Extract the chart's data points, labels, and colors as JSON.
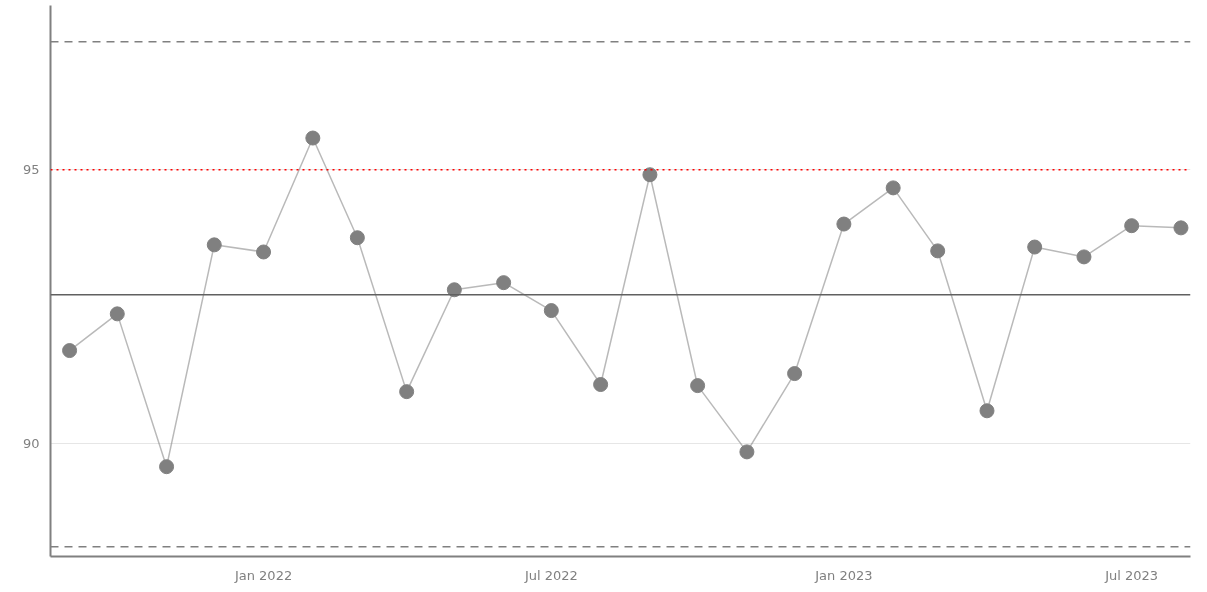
{
  "chart_data": {
    "type": "line",
    "x": [
      "2021-09",
      "2021-10",
      "2021-11",
      "2021-12",
      "2022-01",
      "2022-02",
      "2022-03",
      "2022-04",
      "2022-05",
      "2022-06",
      "2022-07",
      "2022-08",
      "2022-09",
      "2022-10",
      "2022-11",
      "2022-12",
      "2023-01",
      "2023-02",
      "2023-03",
      "2023-04",
      "2023-05",
      "2023-06",
      "2023-07",
      "2023-08"
    ],
    "series": [
      {
        "color": "#808080",
        "values": [
          91.7,
          92.37,
          89.58,
          93.63,
          93.5,
          95.58,
          93.76,
          90.95,
          92.81,
          92.94,
          92.43,
          91.08,
          94.91,
          91.06,
          89.85,
          91.28,
          94.01,
          94.67,
          93.52,
          90.6,
          93.59,
          93.41,
          93.98,
          93.94
        ]
      }
    ],
    "marker": "circle",
    "line_style": "solid",
    "grid": "y",
    "xlim": [
      "2021-08-20",
      "2023-08-07"
    ],
    "xticks": [
      {
        "value": "2022-01",
        "label": "Jan 2022"
      },
      {
        "value": "2022-07",
        "label": "Jul 2022"
      },
      {
        "value": "2023-01",
        "label": "Jan 2023"
      },
      {
        "value": "2023-07",
        "label": "Jul 2023"
      }
    ],
    "ylim": [
      87.94,
      98.0
    ],
    "yticks": [
      90,
      95
    ],
    "ref_lines": [
      {
        "axis": "y",
        "value": 97.34,
        "color": "#808080",
        "line_style": "dashed"
      },
      {
        "axis": "y",
        "value": 88.12,
        "color": "#808080",
        "line_style": "dashed"
      },
      {
        "axis": "y",
        "value": 92.72,
        "color": "#606060",
        "line_style": "solid"
      },
      {
        "axis": "y",
        "value": 95,
        "color": "#ff0000",
        "line_style": "dotted"
      }
    ]
  }
}
